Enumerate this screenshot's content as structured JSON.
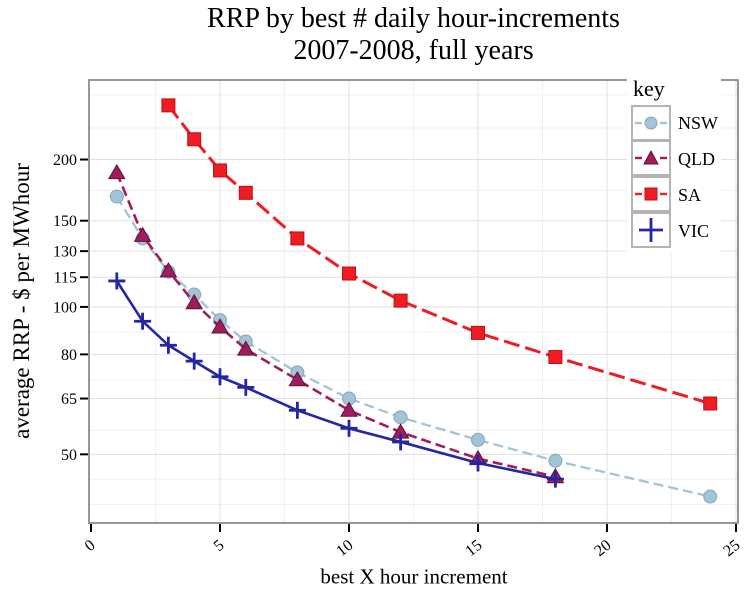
{
  "figure": {
    "background": "#ffffff",
    "grid_major_color": "#e0e0e0",
    "grid_minor_color": "#efefef",
    "border_color": "#858585",
    "tick_color": "#000000"
  },
  "chart_data": {
    "type": "line",
    "title": "RRP by best # daily hour-increments",
    "subtitle": "2007-2008, full years",
    "xlabel": "best X hour increment",
    "ylabel": "average RRP - $ per MWhour",
    "x_scale": "linear",
    "y_scale": "log",
    "xlim": [
      0,
      25
    ],
    "ylim": [
      36.2,
      290.7
    ],
    "x_ticks": [
      0,
      5,
      10,
      15,
      20,
      25
    ],
    "x_minor_gridlines": [
      2.5,
      7.5,
      12.5,
      17.5,
      22.5
    ],
    "y_ticks": [
      50,
      65,
      80,
      100,
      115,
      130,
      150,
      200
    ],
    "y_minor_gridlines": [
      39.5,
      44.5,
      56,
      71,
      89,
      173,
      232,
      271
    ],
    "grid": true,
    "legend": {
      "title": "key",
      "position": "top-right"
    },
    "series": [
      {
        "name": "NSW",
        "marker": "circle",
        "line_style": "dashed",
        "color": "#a3c3d6",
        "edge_color": "#83a8bd",
        "x": [
          1,
          2,
          3,
          4,
          5,
          6,
          8,
          10,
          12,
          15,
          18,
          24
        ],
        "y": [
          168,
          138,
          118,
          106,
          94,
          85,
          73.5,
          65,
          59.5,
          53.5,
          48.5,
          41
        ]
      },
      {
        "name": "QLD",
        "marker": "triangle",
        "line_style": "dashed",
        "color": "#a01d5d",
        "edge_color": "#5e1136",
        "x": [
          1,
          2,
          3,
          4,
          5,
          6,
          8,
          10,
          12,
          15,
          18
        ],
        "y": [
          188,
          140,
          118.5,
          102,
          91,
          82,
          71,
          61.5,
          55.5,
          49,
          45
        ]
      },
      {
        "name": "SA",
        "marker": "square",
        "line_style": "dashed",
        "color": "#ee1c23",
        "edge_color": "#c01016",
        "x": [
          3,
          4,
          5,
          6,
          8,
          10,
          12,
          15,
          18,
          24
        ],
        "y": [
          258,
          220,
          190,
          171,
          138,
          117,
          103,
          88.5,
          79,
          63.5
        ]
      },
      {
        "name": "VIC",
        "marker": "plus",
        "line_style": "solid",
        "color": "#2626a2",
        "edge_color": "#2626a2",
        "x": [
          1,
          2,
          3,
          4,
          5,
          6,
          8,
          10,
          12,
          15,
          18
        ],
        "y": [
          113,
          93.5,
          83.5,
          77.5,
          72,
          68.5,
          61.5,
          56.5,
          53,
          48,
          44.5
        ]
      }
    ]
  }
}
